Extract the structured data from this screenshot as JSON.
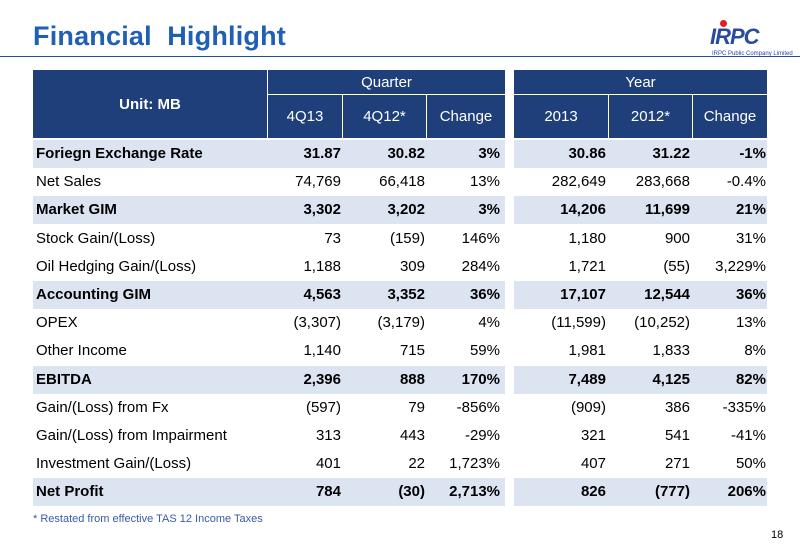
{
  "title": "Financial  Highlight",
  "logo": {
    "mark": "IRPC",
    "subtitle": "IRPC Public Company Limited"
  },
  "table": {
    "unit_label": "Unit: MB",
    "groups": [
      "Quarter",
      "Year"
    ],
    "columns": [
      "4Q13",
      "4Q12*",
      "Change",
      "2013",
      "2012*",
      "Change"
    ],
    "rows": [
      {
        "label": "Foriegn Exchange Rate",
        "bold": true,
        "values": [
          "31.87",
          "30.82",
          "3%",
          "30.86",
          "31.22",
          "-1%"
        ]
      },
      {
        "label": "Net Sales",
        "bold": false,
        "values": [
          "74,769",
          "66,418",
          "13%",
          "282,649",
          "283,668",
          "-0.4%"
        ]
      },
      {
        "label": "Market GIM",
        "bold": true,
        "values": [
          "3,302",
          "3,202",
          "3%",
          "14,206",
          "11,699",
          "21%"
        ]
      },
      {
        "label": "Stock Gain/(Loss)",
        "bold": false,
        "values": [
          "73",
          "(159)",
          "146%",
          "1,180",
          "900",
          "31%"
        ]
      },
      {
        "label": "Oil Hedging Gain/(Loss)",
        "bold": false,
        "values": [
          "1,188",
          "309",
          "284%",
          "1,721",
          "(55)",
          "3,229%"
        ]
      },
      {
        "label": "Accounting GIM",
        "bold": true,
        "values": [
          "4,563",
          "3,352",
          "36%",
          "17,107",
          "12,544",
          "36%"
        ]
      },
      {
        "label": "OPEX",
        "bold": false,
        "values": [
          "(3,307)",
          "(3,179)",
          "4%",
          "(11,599)",
          "(10,252)",
          "13%"
        ]
      },
      {
        "label": "Other Income",
        "bold": false,
        "values": [
          "1,140",
          "715",
          "59%",
          "1,981",
          "1,833",
          "8%"
        ]
      },
      {
        "label": "EBITDA",
        "bold": true,
        "values": [
          "2,396",
          "888",
          "170%",
          "7,489",
          "4,125",
          "82%"
        ]
      },
      {
        "label": "Gain/(Loss) from Fx",
        "bold": false,
        "values": [
          "(597)",
          "79",
          "-856%",
          "(909)",
          "386",
          "-335%"
        ]
      },
      {
        "label": "Gain/(Loss) from Impairment",
        "bold": false,
        "values": [
          "313",
          "443",
          "-29%",
          "321",
          "541",
          "-41%"
        ]
      },
      {
        "label": "Investment Gain/(Loss)",
        "bold": false,
        "values": [
          "401",
          "22",
          "1,723%",
          "407",
          "271",
          "50%"
        ]
      },
      {
        "label": "Net Profit",
        "bold": true,
        "values": [
          "784",
          "(30)",
          "2,713%",
          "826",
          "(777)",
          "206%"
        ]
      }
    ]
  },
  "footnote": "* Restated from effective TAS 12 Income Taxes",
  "page_number": "18",
  "colors": {
    "title": "#1F5FB4",
    "header_bg": "#1E3F7A",
    "highlight_row": "#DCE3F1",
    "footnote": "#3A5BA6"
  }
}
